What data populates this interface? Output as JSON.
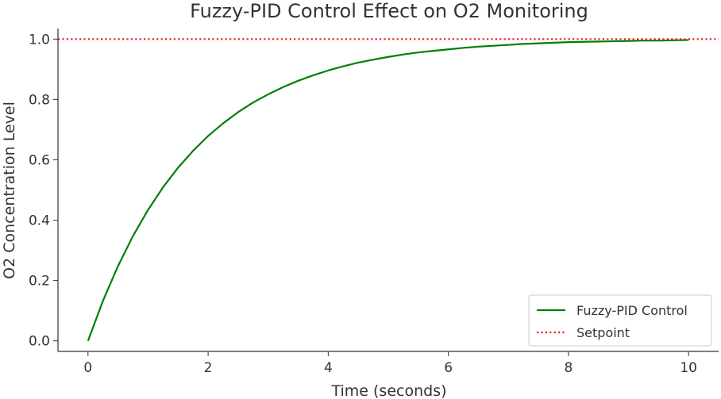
{
  "chart_data": {
    "type": "line",
    "title": "Fuzzy-PID Control Effect on O2 Monitoring",
    "xlabel": "Time (seconds)",
    "ylabel": "O2 Concentration Level",
    "xlim": [
      -0.5,
      10.5
    ],
    "ylim": [
      -0.035,
      1.035
    ],
    "x_ticks": [
      0,
      2,
      4,
      6,
      8,
      10
    ],
    "x_tick_labels": [
      "0",
      "2",
      "4",
      "6",
      "8",
      "10"
    ],
    "y_ticks": [
      0.0,
      0.2,
      0.4,
      0.6,
      0.8,
      1.0
    ],
    "y_tick_labels": [
      "0.0",
      "0.2",
      "0.4",
      "0.6",
      "0.8",
      "1.0"
    ],
    "grid": false,
    "legend_position": "lower-right",
    "series": [
      {
        "name": "Fuzzy-PID Control",
        "color": "#008000",
        "style": "solid",
        "x": [
          0,
          0.25,
          0.5,
          0.75,
          1.0,
          1.25,
          1.5,
          1.75,
          2.0,
          2.25,
          2.5,
          2.75,
          3.0,
          3.25,
          3.5,
          3.75,
          4.0,
          4.25,
          4.5,
          4.75,
          5.0,
          5.25,
          5.5,
          5.75,
          6.0,
          6.25,
          6.5,
          6.75,
          7.0,
          7.25,
          7.5,
          7.75,
          8.0,
          8.25,
          8.5,
          8.75,
          9.0,
          9.25,
          9.5,
          9.75,
          10.0
        ],
        "y": [
          0.0,
          0.133,
          0.248,
          0.348,
          0.434,
          0.509,
          0.574,
          0.63,
          0.679,
          0.721,
          0.758,
          0.79,
          0.817,
          0.841,
          0.862,
          0.88,
          0.896,
          0.91,
          0.922,
          0.932,
          0.941,
          0.949,
          0.956,
          0.961,
          0.966,
          0.971,
          0.975,
          0.978,
          0.981,
          0.984,
          0.986,
          0.988,
          0.99,
          0.991,
          0.992,
          0.993,
          0.994,
          0.995,
          0.995,
          0.996,
          0.997
        ]
      },
      {
        "name": "Setpoint",
        "color": "#e8202a",
        "style": "dotted",
        "x": [
          -0.5,
          10.5
        ],
        "y": [
          1.0,
          1.0
        ]
      }
    ]
  }
}
